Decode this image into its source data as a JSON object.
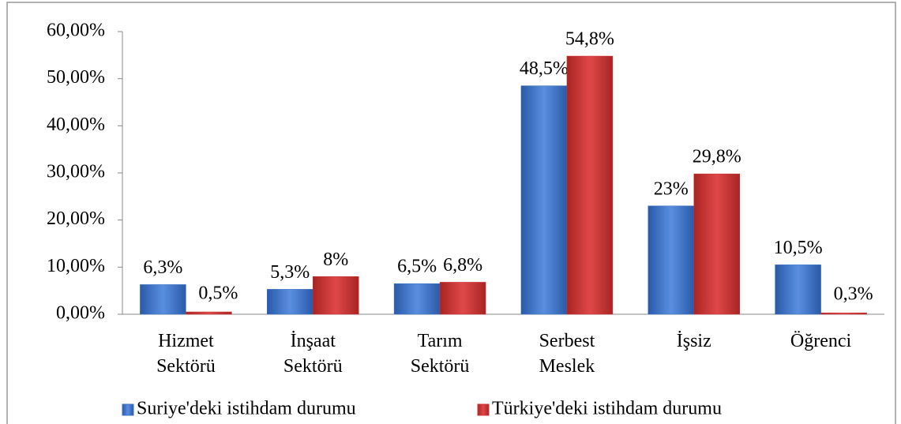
{
  "chart_data": {
    "type": "bar",
    "categories": [
      "Hizmet Sektörü",
      "İnşaat Sektörü",
      "Tarım Sektörü",
      "Serbest Meslek",
      "İşsiz",
      "Öğrenci"
    ],
    "series": [
      {
        "name": "Suriye'deki istihdam durumu",
        "color": "#3d72c4",
        "values": [
          6.3,
          5.3,
          6.5,
          48.5,
          23,
          10.5
        ],
        "value_labels": [
          "6,3%",
          "5,3%",
          "6,5%",
          "48,5%",
          "23%",
          "10,5%"
        ]
      },
      {
        "name": "Türkiye'deki istihdam durumu",
        "color": "#cc3333",
        "values": [
          0.5,
          8,
          6.8,
          54.8,
          29.8,
          0.3
        ],
        "value_labels": [
          "0,5%",
          "8%",
          "6,8%",
          "54,8%",
          "29,8%",
          "0,3%"
        ]
      }
    ],
    "ylim": [
      0,
      60
    ],
    "yticks": [
      {
        "value": 0,
        "label": "0,00%"
      },
      {
        "value": 10,
        "label": "10,00%"
      },
      {
        "value": 20,
        "label": "20,00%"
      },
      {
        "value": 30,
        "label": "30,00%"
      },
      {
        "value": 40,
        "label": "40,00%"
      },
      {
        "value": 50,
        "label": "50,00%"
      },
      {
        "value": 60,
        "label": "60,00%"
      }
    ],
    "legend": "bottom"
  }
}
